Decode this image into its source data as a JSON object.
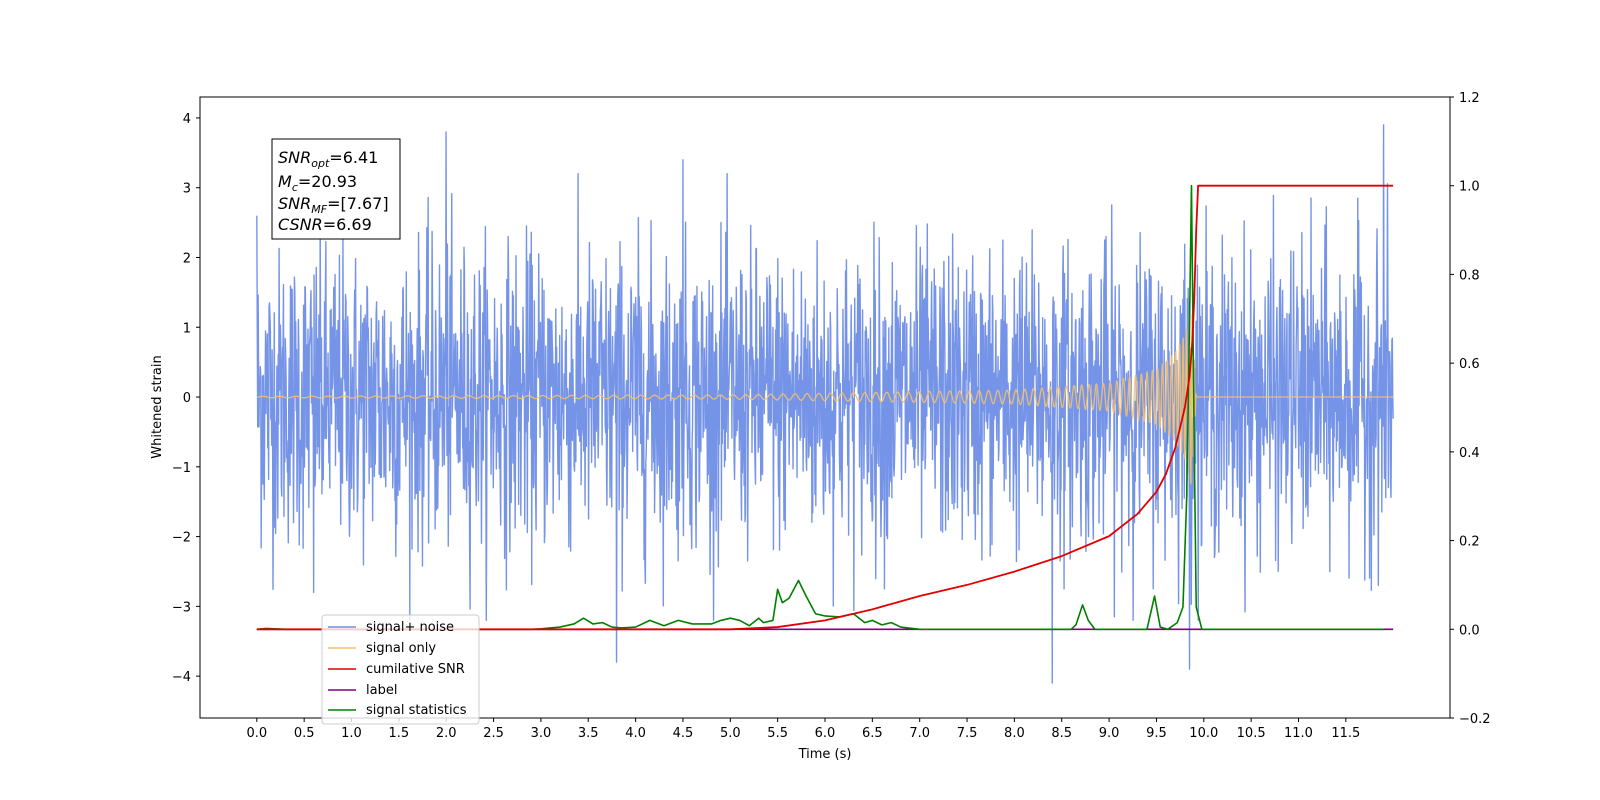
{
  "chart_data": {
    "type": "line",
    "xlabel": "Time (s)",
    "ylabel": "Whitened strain",
    "xlim": [
      -0.6,
      12.6
    ],
    "ylim": [
      -4.6,
      4.3
    ],
    "y2lim": [
      -0.2,
      1.2
    ],
    "x_ticks": [
      "0.0",
      "0.5",
      "1.0",
      "1.5",
      "2.0",
      "2.5",
      "3.0",
      "3.5",
      "4.0",
      "4.5",
      "5.0",
      "5.5",
      "6.0",
      "6.5",
      "7.0",
      "7.5",
      "8.0",
      "8.5",
      "9.0",
      "9.5",
      "10.0",
      "10.5",
      "11.0",
      "11.5"
    ],
    "y_ticks": [
      "4",
      "3",
      "2",
      "1",
      "0",
      "−1",
      "−2",
      "−3",
      "−4"
    ],
    "y2_ticks": [
      "1.2",
      "1.0",
      "0.8",
      "0.6",
      "0.4",
      "0.2",
      "0.0",
      "−0.2"
    ],
    "grid": false,
    "legend_position": "lower-left",
    "stats_box": {
      "snr_opt": {
        "base": "SNR",
        "sub": "opt",
        "value": "=6.41"
      },
      "mc": {
        "base": "M",
        "sub": "c",
        "value": "=20.93"
      },
      "snr_mf": {
        "base": "SNR",
        "sub": "MF",
        "value": "=[7.67]"
      },
      "csnr": {
        "base": "CSNR",
        "sub": "",
        "value": "=6.69"
      }
    },
    "series": [
      {
        "name": "signal+ noise",
        "axis": "left",
        "color": "#6f8ee6",
        "style": "white-noise, amplitude ~±2.5 with spikes to ±3.9, 0.0–12.0 s",
        "x_range": [
          0.0,
          12.0
        ],
        "points": [
          [
            0.0,
            2.6
          ],
          [
            0.6,
            -2.8
          ],
          [
            2.0,
            3.8
          ],
          [
            3.8,
            -3.8
          ],
          [
            4.5,
            3.4
          ],
          [
            8.4,
            -4.1
          ],
          [
            9.85,
            -3.9
          ],
          [
            11.9,
            3.9
          ]
        ]
      },
      {
        "name": "signal only",
        "axis": "left",
        "color": "#f5c06a",
        "style": "chirp, amplitude ~0.01 growing to ~1.35 at 9.87 s, zero after 9.92 s",
        "x_range": [
          0.0,
          12.0
        ],
        "envelope": [
          [
            0.0,
            0.01
          ],
          [
            5.0,
            0.03
          ],
          [
            8.0,
            0.1
          ],
          [
            9.0,
            0.2
          ],
          [
            9.5,
            0.4
          ],
          [
            9.7,
            0.65
          ],
          [
            9.8,
            0.9
          ],
          [
            9.87,
            1.35
          ],
          [
            9.92,
            0.0
          ]
        ]
      },
      {
        "name": "cumilative SNR",
        "axis": "right",
        "color": "#e00000",
        "points": [
          [
            0.0,
            0.0
          ],
          [
            5.0,
            0.0
          ],
          [
            5.5,
            0.005
          ],
          [
            6.0,
            0.02
          ],
          [
            6.5,
            0.045
          ],
          [
            7.0,
            0.075
          ],
          [
            7.5,
            0.1
          ],
          [
            8.0,
            0.13
          ],
          [
            8.5,
            0.165
          ],
          [
            9.0,
            0.21
          ],
          [
            9.3,
            0.26
          ],
          [
            9.5,
            0.31
          ],
          [
            9.6,
            0.35
          ],
          [
            9.7,
            0.41
          ],
          [
            9.8,
            0.5
          ],
          [
            9.85,
            0.57
          ],
          [
            9.88,
            0.65
          ],
          [
            9.9,
            0.75
          ],
          [
            9.92,
            0.9
          ],
          [
            9.94,
            1.0
          ],
          [
            12.0,
            1.0
          ]
        ]
      },
      {
        "name": "label",
        "axis": "right",
        "color": "#800080",
        "points": [
          [
            0.0,
            0.0
          ],
          [
            12.0,
            0.0
          ]
        ]
      },
      {
        "name": "signal statistics",
        "axis": "right",
        "color": "#008000",
        "points": [
          [
            0.0,
            0.0
          ],
          [
            0.1,
            0.002
          ],
          [
            0.3,
            0.0
          ],
          [
            2.9,
            0.0
          ],
          [
            3.0,
            0.001
          ],
          [
            3.2,
            0.005
          ],
          [
            3.35,
            0.012
          ],
          [
            3.45,
            0.025
          ],
          [
            3.55,
            0.012
          ],
          [
            3.65,
            0.015
          ],
          [
            3.75,
            0.005
          ],
          [
            3.85,
            0.003
          ],
          [
            4.0,
            0.005
          ],
          [
            4.15,
            0.02
          ],
          [
            4.3,
            0.008
          ],
          [
            4.45,
            0.02
          ],
          [
            4.6,
            0.012
          ],
          [
            4.8,
            0.012
          ],
          [
            4.9,
            0.02
          ],
          [
            5.0,
            0.025
          ],
          [
            5.1,
            0.02
          ],
          [
            5.2,
            0.008
          ],
          [
            5.3,
            0.025
          ],
          [
            5.35,
            0.015
          ],
          [
            5.45,
            0.02
          ],
          [
            5.5,
            0.09
          ],
          [
            5.55,
            0.06
          ],
          [
            5.62,
            0.07
          ],
          [
            5.72,
            0.11
          ],
          [
            5.8,
            0.075
          ],
          [
            5.9,
            0.035
          ],
          [
            6.0,
            0.03
          ],
          [
            6.15,
            0.028
          ],
          [
            6.3,
            0.035
          ],
          [
            6.42,
            0.015
          ],
          [
            6.5,
            0.02
          ],
          [
            6.6,
            0.01
          ],
          [
            6.7,
            0.015
          ],
          [
            6.8,
            0.005
          ],
          [
            7.0,
            0.0
          ],
          [
            8.6,
            0.0
          ],
          [
            8.65,
            0.01
          ],
          [
            8.72,
            0.055
          ],
          [
            8.78,
            0.02
          ],
          [
            8.85,
            0.0
          ],
          [
            9.4,
            0.0
          ],
          [
            9.48,
            0.075
          ],
          [
            9.54,
            0.005
          ],
          [
            9.62,
            0.0
          ],
          [
            9.72,
            0.015
          ],
          [
            9.78,
            0.05
          ],
          [
            9.82,
            0.3
          ],
          [
            9.85,
            0.7
          ],
          [
            9.87,
            1.0
          ],
          [
            9.9,
            0.4
          ],
          [
            9.92,
            0.05
          ],
          [
            9.98,
            0.0
          ],
          [
            11.9,
            0.0
          ]
        ]
      }
    ]
  }
}
